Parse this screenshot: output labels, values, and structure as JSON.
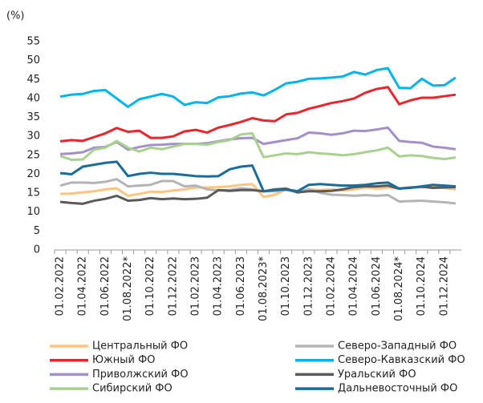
{
  "chart_data": {
    "type": "line",
    "ylabel": "(%)",
    "categories": [
      "01.02.2022",
      null,
      "01.04.2022",
      null,
      "01.06.2022",
      null,
      "01.08.2022*",
      null,
      "01.10.2022",
      null,
      "01.12.2022",
      null,
      "01.02.2023",
      null,
      "01.04.2023",
      null,
      "01.06.2023",
      null,
      "01.08.2023*",
      null,
      "01.10.2023",
      null,
      "01.12.2023",
      null,
      "01.02.2024",
      null,
      "01.04.2024",
      null,
      "01.06.2024",
      null,
      "01.08.2024*",
      null,
      "01.10.2024",
      null,
      "01.12.2024",
      null
    ],
    "ylim": [
      0,
      55
    ],
    "yticks": [
      0,
      5,
      10,
      15,
      20,
      25,
      30,
      35,
      40,
      45,
      50,
      55
    ],
    "grid": false,
    "series": [
      {
        "name": "Центральный ФО",
        "color": "#ffc47f",
        "values": [
          14.8,
          14.9,
          15.2,
          15.5,
          16,
          16.3,
          14.3,
          14.8,
          15.4,
          15.3,
          15.7,
          16,
          16.5,
          16.5,
          16.6,
          16.8,
          17.2,
          17.4,
          14,
          14.6,
          16,
          15.5,
          16,
          15.8,
          16,
          15.7,
          16,
          16.5,
          16.2,
          16.5,
          16.2,
          16.5,
          16.5,
          16.8,
          16.4,
          16
        ]
      },
      {
        "name": "Северо-Западный ФО",
        "color": "#b4b4b4",
        "values": [
          17,
          17.8,
          17.8,
          17.7,
          18,
          18.7,
          16.8,
          17,
          17.2,
          18.2,
          18.2,
          16.8,
          17,
          16,
          15.7,
          15.8,
          16.3,
          16,
          15.5,
          15.5,
          15.8,
          15.3,
          16,
          15.1,
          14.6,
          14.5,
          14.3,
          14.5,
          14.3,
          14.5,
          12.8,
          12.9,
          13,
          12.8,
          12.6,
          12.3
        ]
      },
      {
        "name": "Южный ФО",
        "color": "#e8262d",
        "values": [
          28.7,
          29,
          28.8,
          29.8,
          30.8,
          32.2,
          31.2,
          31.5,
          29.6,
          29.6,
          30,
          31.3,
          31.7,
          31,
          32.3,
          33,
          33.8,
          34.8,
          34.2,
          34,
          35.8,
          36.2,
          37.3,
          38,
          38.8,
          39.3,
          40,
          41.5,
          42.5,
          43,
          38.5,
          39.5,
          40.2,
          40.2,
          40.6,
          41
        ]
      },
      {
        "name": "Северо-Кавказский ФО",
        "color": "#00b4ee",
        "values": [
          40.5,
          41,
          41.2,
          42,
          42.2,
          40,
          37.8,
          39.8,
          40.5,
          41.2,
          40.5,
          38.3,
          39,
          38.8,
          40.3,
          40.6,
          41.3,
          41.6,
          40.8,
          42.3,
          44,
          44.4,
          45.2,
          45.3,
          45.5,
          45.8,
          47,
          46.3,
          47.5,
          48,
          42.8,
          42.7,
          45.2,
          43.4,
          43.5,
          45.5
        ]
      },
      {
        "name": "Приволжский ФО",
        "color": "#a58fc8",
        "values": [
          25.3,
          25.5,
          25.8,
          27,
          27.2,
          28.5,
          26.5,
          27.2,
          27.7,
          27.8,
          28,
          28,
          28,
          28.2,
          28.7,
          29.2,
          29.5,
          29.6,
          28,
          28.5,
          29,
          29.5,
          31,
          30.8,
          30.4,
          30.8,
          31.5,
          31.4,
          31.8,
          32.3,
          28.8,
          28.5,
          28.3,
          27.3,
          27,
          26.6
        ]
      },
      {
        "name": "Уральский ФО",
        "color": "#5a5a5a",
        "values": [
          12.7,
          12.4,
          12.2,
          13,
          13.5,
          14.3,
          13,
          13.2,
          13.7,
          13.4,
          13.6,
          13.4,
          13.5,
          13.8,
          15.8,
          15.6,
          15.8,
          15.8,
          15.5,
          16,
          16.2,
          15.2,
          15.5,
          15.5,
          15.6,
          16,
          16.6,
          16.8,
          16.8,
          17,
          16.2,
          16.5,
          16.7,
          16.4,
          16.5,
          16.6
        ]
      },
      {
        "name": "Сибирский ФО",
        "color": "#a9d18e",
        "values": [
          24.8,
          23.8,
          23.9,
          26.5,
          27,
          28.8,
          27,
          26,
          27,
          26.6,
          27.3,
          28,
          28,
          27.8,
          28.5,
          29,
          30.5,
          30.8,
          24.5,
          25,
          25.5,
          25.3,
          25.8,
          25.5,
          25.3,
          25,
          25.3,
          25.8,
          26.3,
          27,
          24.7,
          25,
          24.8,
          24.3,
          24,
          24.4
        ]
      },
      {
        "name": "Дальневосточный ФО",
        "color": "#1a6c9c",
        "values": [
          20.3,
          20,
          22,
          22.5,
          23,
          23.3,
          19.5,
          20.1,
          20.4,
          20.1,
          20.1,
          19.8,
          19.5,
          19.4,
          19.5,
          21.3,
          22,
          22.3,
          15.5,
          15.8,
          16,
          15.5,
          17.2,
          17.4,
          17.2,
          17,
          17,
          17.2,
          17.6,
          17.8,
          16.2,
          16.4,
          16.8,
          17.2,
          17,
          16.8
        ]
      }
    ]
  }
}
